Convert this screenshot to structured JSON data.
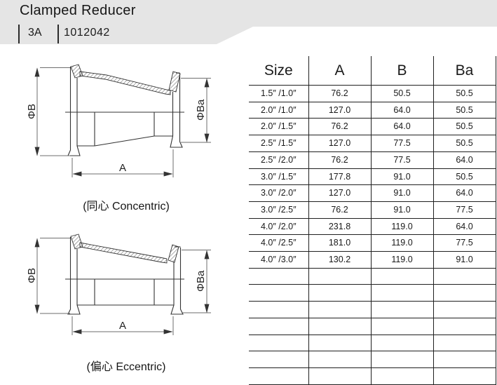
{
  "header": {
    "title": "Clamped Reducer",
    "standard": "3A",
    "part_number": "1012042",
    "band_color": "#e5e5e5"
  },
  "table": {
    "columns": [
      "Size",
      "A",
      "B",
      "Ba"
    ],
    "rows": [
      [
        "1.5″ /1.0″",
        "76.2",
        "50.5",
        "50.5"
      ],
      [
        "2.0″ /1.0″",
        "127.0",
        "64.0",
        "50.5"
      ],
      [
        "2.0″ /1.5″",
        "76.2",
        "64.0",
        "50.5"
      ],
      [
        "2.5″ /1.5″",
        "127.0",
        "77.5",
        "50.5"
      ],
      [
        "2.5″ /2.0″",
        "76.2",
        "77.5",
        "64.0"
      ],
      [
        "3.0″ /1.5″",
        "177.8",
        "91.0",
        "50.5"
      ],
      [
        "3.0″ /2.0″",
        "127.0",
        "91.0",
        "64.0"
      ],
      [
        "3.0″ /2.5″",
        "76.2",
        "91.0",
        "77.5"
      ],
      [
        "4.0″ /2.0″",
        "231.8",
        "119.0",
        "64.0"
      ],
      [
        "4.0″ /2.5″",
        "181.0",
        "119.0",
        "77.5"
      ],
      [
        "4.0″ /3.0″",
        "130.2",
        "119.0",
        "91.0"
      ]
    ],
    "empty_row_count": 7,
    "line_color": "#1f1f1f"
  },
  "drawings": {
    "concentric": {
      "caption": "(同心 Concentric)",
      "dim_left": "ΦB",
      "dim_right": "ΦBa",
      "dim_bottom": "A"
    },
    "eccentric": {
      "caption": "(偏心 Eccentric)",
      "dim_left": "ΦB",
      "dim_right": "ΦBa",
      "dim_bottom": "A"
    }
  }
}
